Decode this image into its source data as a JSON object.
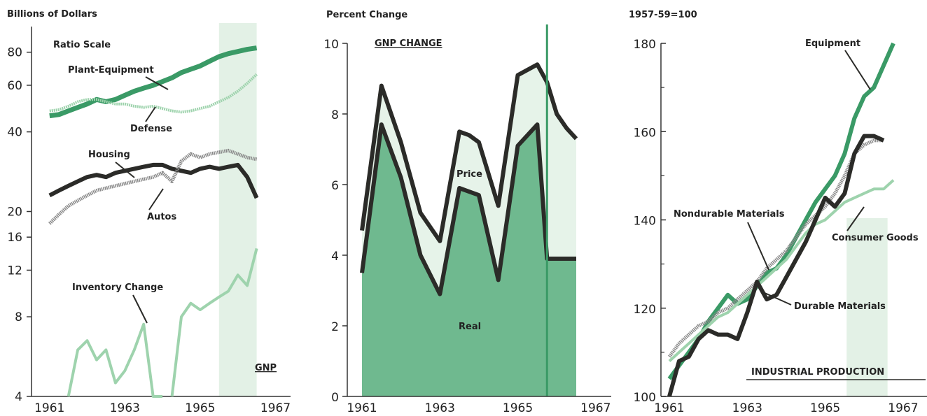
{
  "colors": {
    "green": "#3a9a66",
    "lightGreen": "#9ed3ad",
    "dark": "#2b2b28",
    "shade": "#e3f1e6",
    "realFill": "#6fb98f",
    "priceFill": "#e6f3e9"
  },
  "chart_data": [
    {
      "type": "line",
      "ylabel": "Billions of Dollars",
      "scale_note": "Ratio Scale",
      "log_scale": true,
      "ylim": [
        4,
        100
      ],
      "xlim": [
        1960.8,
        1967.4
      ],
      "y_ticks": [
        4,
        8,
        12,
        16,
        20,
        40,
        60,
        80
      ],
      "x_ticks": [
        1961,
        1963,
        1965,
        1967
      ],
      "shaded_region": [
        1965.5,
        1966.5
      ],
      "shade_label": "GNP",
      "series": [
        {
          "name": "Plant-Equipment",
          "x": [
            1961.0,
            1961.25,
            1961.5,
            1961.75,
            1962.0,
            1962.25,
            1962.5,
            1962.75,
            1963.0,
            1963.25,
            1963.5,
            1963.75,
            1964.0,
            1964.25,
            1964.5,
            1964.75,
            1965.0,
            1965.25,
            1965.5,
            1965.75,
            1966.0,
            1966.25,
            1966.5
          ],
          "y": [
            46,
            46.5,
            48,
            49.5,
            51,
            53,
            52,
            53,
            55,
            57,
            58.5,
            60,
            62,
            64,
            67,
            69,
            71,
            74,
            77,
            79,
            80.5,
            82,
            83
          ]
        },
        {
          "name": "Defense",
          "x": [
            1961.0,
            1961.25,
            1961.5,
            1961.75,
            1962.0,
            1962.25,
            1962.5,
            1962.75,
            1963.0,
            1963.25,
            1963.5,
            1963.75,
            1964.0,
            1964.25,
            1964.5,
            1964.75,
            1965.0,
            1965.25,
            1965.5,
            1965.75,
            1966.0,
            1966.25,
            1966.5
          ],
          "y": [
            48,
            48.5,
            50,
            52,
            53,
            53,
            52,
            51,
            51,
            50,
            49.5,
            50,
            49,
            48,
            47.5,
            48,
            49,
            50,
            52,
            54,
            57,
            61,
            66
          ]
        },
        {
          "name": "Housing",
          "x": [
            1961.0,
            1961.25,
            1961.5,
            1961.75,
            1962.0,
            1962.25,
            1962.5,
            1962.75,
            1963.0,
            1963.25,
            1963.5,
            1963.75,
            1964.0,
            1964.25,
            1964.5,
            1964.75,
            1965.0,
            1965.25,
            1965.5,
            1965.75,
            1966.0,
            1966.25,
            1966.5
          ],
          "y": [
            23,
            24,
            25,
            26,
            27,
            27.5,
            27,
            28,
            28.5,
            29,
            29.5,
            30,
            30,
            29,
            28.5,
            28,
            29,
            29.5,
            29,
            29.5,
            30,
            27,
            22.5
          ]
        },
        {
          "name": "Autos",
          "x": [
            1961.0,
            1961.25,
            1961.5,
            1961.75,
            1962.0,
            1962.25,
            1962.5,
            1962.75,
            1963.0,
            1963.25,
            1963.5,
            1963.75,
            1964.0,
            1964.25,
            1964.5,
            1964.75,
            1965.0,
            1965.25,
            1965.5,
            1965.75,
            1966.0,
            1966.25,
            1966.5
          ],
          "y": [
            18,
            19.5,
            21,
            22,
            23,
            24,
            24.5,
            25,
            25.5,
            26,
            26.5,
            27,
            28,
            26,
            31,
            33,
            32,
            33,
            33.5,
            34,
            33,
            32,
            31.5
          ]
        },
        {
          "name": "Inventory Change",
          "segments": [
            {
              "x": [
                1961.5,
                1961.75,
                1962.0,
                1962.25,
                1962.5,
                1962.75,
                1963.0,
                1963.25,
                1963.5,
                1963.75,
                1964.0
              ],
              "y": [
                4,
                6,
                6.5,
                5.5,
                6,
                4.5,
                5,
                6,
                7.5,
                4,
                4
              ]
            },
            {
              "x": [
                1964.25,
                1964.5,
                1964.75,
                1965.0,
                1965.25,
                1965.5,
                1965.75,
                1966.0,
                1966.25,
                1966.5
              ],
              "y": [
                4,
                8,
                9,
                8.5,
                9,
                9.5,
                10,
                11.5,
                10.5,
                14.5
              ]
            }
          ]
        }
      ]
    },
    {
      "type": "area",
      "title": "GNP CHANGE",
      "ylabel": "Percent Change",
      "ylim": [
        0,
        10
      ],
      "xlim": [
        1960.8,
        1967.4
      ],
      "y_ticks": [
        0,
        2,
        4,
        6,
        8,
        10
      ],
      "x_ticks": [
        1961,
        1963,
        1965,
        1967
      ],
      "vertical_line": 1965.75,
      "x": [
        1961.0,
        1961.5,
        1962.0,
        1962.5,
        1963.0,
        1963.5,
        1963.75,
        1964.0,
        1964.5,
        1965.0,
        1965.5,
        1965.75,
        1966.0,
        1966.25,
        1966.5
      ],
      "series": [
        {
          "name": "Price",
          "y": [
            4.7,
            8.8,
            7.2,
            5.2,
            4.4,
            7.5,
            7.4,
            7.2,
            5.4,
            9.1,
            9.4,
            8.9,
            8.0,
            7.6,
            7.3
          ]
        },
        {
          "name": "Real",
          "y": [
            3.5,
            7.7,
            6.2,
            4.0,
            2.9,
            5.9,
            5.8,
            5.7,
            3.3,
            7.1,
            7.7,
            3.9,
            3.9,
            3.9,
            3.9
          ]
        }
      ]
    },
    {
      "type": "line",
      "ylabel": "1957-59=100",
      "title": "INDUSTRIAL PRODUCTION",
      "ylim": [
        100,
        183
      ],
      "xlim": [
        1960.8,
        1967.4
      ],
      "y_ticks": [
        100,
        120,
        140,
        160,
        180
      ],
      "x_ticks": [
        1961,
        1963,
        1965,
        1967
      ],
      "shaded_region": [
        1965.55,
        1966.6
      ],
      "series": [
        {
          "name": "Equipment",
          "x": [
            1961.0,
            1961.25,
            1961.5,
            1961.75,
            1962.0,
            1962.25,
            1962.5,
            1962.75,
            1963.0,
            1963.25,
            1963.5,
            1963.75,
            1964.0,
            1964.25,
            1964.5,
            1964.75,
            1965.0,
            1965.25,
            1965.5,
            1965.75,
            1966.0,
            1966.25,
            1966.5,
            1966.75
          ],
          "y": [
            104,
            107,
            110,
            113,
            117,
            120,
            123,
            121,
            122,
            125,
            128,
            129,
            132,
            136,
            140,
            144,
            147,
            150,
            155,
            163,
            168,
            170,
            175,
            180
          ]
        },
        {
          "name": "Nondurable Materials",
          "x": [
            1961.0,
            1961.25,
            1961.5,
            1961.75,
            1962.0,
            1962.25,
            1962.5,
            1962.75,
            1963.0,
            1963.25,
            1963.5,
            1963.75,
            1964.0,
            1964.25,
            1964.5,
            1964.75,
            1965.0,
            1965.25,
            1965.5,
            1965.75,
            1966.0,
            1966.25,
            1966.5
          ],
          "y": [
            109,
            112,
            114,
            116,
            117,
            119,
            120,
            122,
            124,
            126,
            129,
            131,
            133,
            136,
            139,
            141,
            143,
            146,
            150,
            155,
            157,
            158,
            158
          ]
        },
        {
          "name": "Consumer Goods",
          "x": [
            1961.0,
            1961.25,
            1961.5,
            1961.75,
            1962.0,
            1962.25,
            1962.5,
            1962.75,
            1963.0,
            1963.25,
            1963.5,
            1963.75,
            1964.0,
            1964.25,
            1964.5,
            1964.75,
            1965.0,
            1965.25,
            1965.5,
            1965.75,
            1966.0,
            1966.25,
            1966.5,
            1966.75
          ],
          "y": [
            108,
            110,
            112,
            114,
            116,
            118,
            119,
            121,
            123,
            125,
            127,
            129,
            131,
            134,
            137,
            139,
            140,
            142,
            144,
            145,
            146,
            147,
            147,
            149
          ]
        },
        {
          "name": "Durable Materials",
          "x": [
            1961.0,
            1961.25,
            1961.5,
            1961.75,
            1962.0,
            1962.25,
            1962.5,
            1962.75,
            1963.0,
            1963.25,
            1963.5,
            1963.75,
            1964.0,
            1964.25,
            1964.5,
            1964.75,
            1965.0,
            1965.25,
            1965.5,
            1965.75,
            1966.0,
            1966.25,
            1966.5
          ],
          "y": [
            100,
            108,
            109,
            113,
            115,
            114,
            114,
            113,
            119,
            126,
            122,
            123,
            127,
            131,
            135,
            140,
            145,
            143,
            146,
            155,
            159,
            159,
            158
          ]
        }
      ]
    }
  ]
}
